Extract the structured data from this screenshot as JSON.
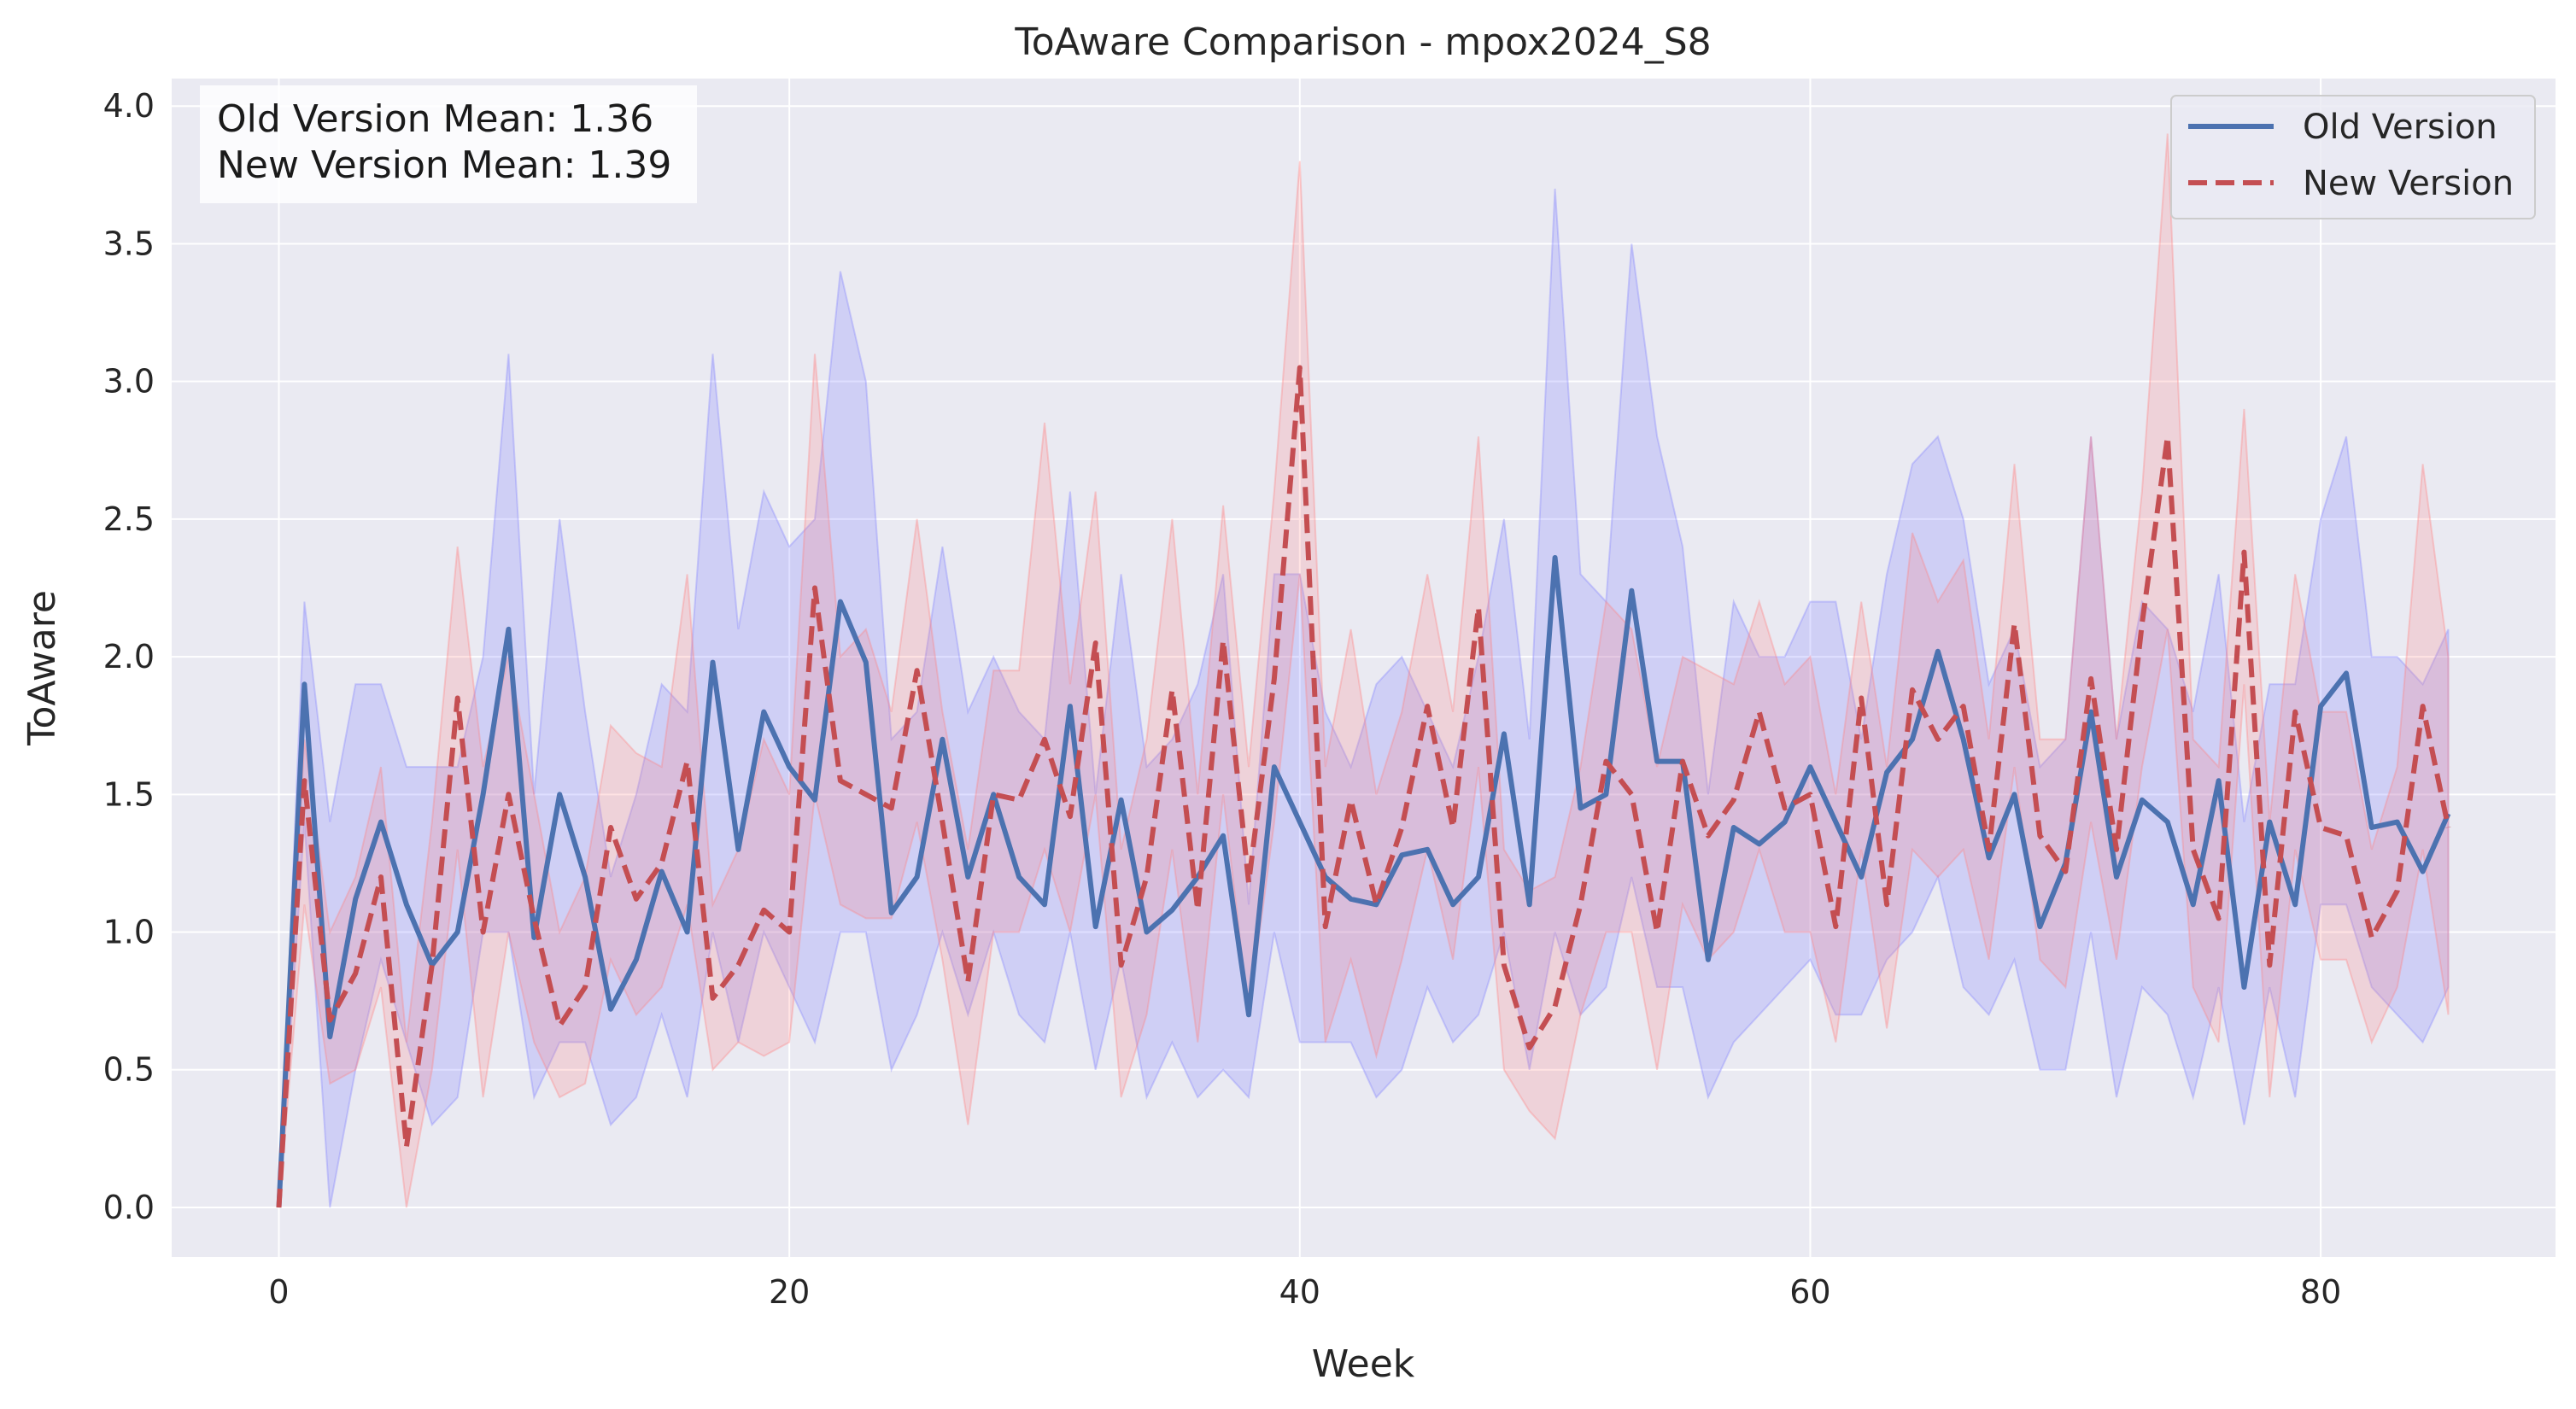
{
  "chart_data": {
    "type": "line",
    "title": "ToAware Comparison - mpox2024_S8",
    "xlabel": "Week",
    "ylabel": "ToAware",
    "xlim": [
      -4.2,
      89.2
    ],
    "ylim": [
      -0.18,
      4.1
    ],
    "x_ticks": [
      0,
      20,
      40,
      60,
      80
    ],
    "y_ticks": [
      0.0,
      0.5,
      1.0,
      1.5,
      2.0,
      2.5,
      3.0,
      3.5,
      4.0
    ],
    "x_tick_labels": [
      "0",
      "20",
      "40",
      "60",
      "80"
    ],
    "y_tick_labels": [
      "0.0",
      "0.5",
      "1.0",
      "1.5",
      "2.0",
      "2.5",
      "3.0",
      "3.5",
      "4.0"
    ],
    "grid": true,
    "legend_position": "top-right",
    "annotation_lines": [
      "Old Version Mean: 1.36",
      "New Version Mean: 1.39"
    ],
    "x": [
      0,
      1,
      2,
      3,
      4,
      5,
      6,
      7,
      8,
      9,
      10,
      11,
      12,
      13,
      14,
      15,
      16,
      17,
      18,
      19,
      20,
      21,
      22,
      23,
      24,
      25,
      26,
      27,
      28,
      29,
      30,
      31,
      32,
      33,
      34,
      35,
      36,
      37,
      38,
      39,
      40,
      41,
      42,
      43,
      44,
      45,
      46,
      47,
      48,
      49,
      50,
      51,
      52,
      53,
      54,
      55,
      56,
      57,
      58,
      59,
      60,
      61,
      62,
      63,
      64,
      65,
      66,
      67,
      68,
      69,
      70,
      71,
      72,
      73,
      74,
      75,
      76,
      77,
      78,
      79,
      80,
      81,
      82,
      83,
      84,
      85
    ],
    "series": [
      {
        "name": "Old Version",
        "color": "#4c72b0",
        "band_color": "#8080ff",
        "style": "solid",
        "values": [
          0.0,
          1.9,
          0.62,
          1.12,
          1.4,
          1.1,
          0.88,
          1.0,
          1.5,
          2.1,
          0.98,
          1.5,
          1.2,
          0.72,
          0.9,
          1.22,
          1.0,
          1.98,
          1.3,
          1.8,
          1.6,
          1.48,
          2.2,
          1.98,
          1.07,
          1.2,
          1.7,
          1.2,
          1.5,
          1.2,
          1.1,
          1.82,
          1.02,
          1.48,
          1.0,
          1.08,
          1.2,
          1.35,
          0.7,
          1.6,
          1.4,
          1.2,
          1.12,
          1.1,
          1.28,
          1.3,
          1.1,
          1.2,
          1.72,
          1.1,
          2.36,
          1.45,
          1.5,
          2.24,
          1.62,
          1.62,
          0.9,
          1.38,
          1.32,
          1.4,
          1.6,
          1.4,
          1.2,
          1.58,
          1.7,
          2.02,
          1.7,
          1.27,
          1.5,
          1.02,
          1.25,
          1.8,
          1.2,
          1.48,
          1.4,
          1.1,
          1.55,
          0.8,
          1.4,
          1.1,
          1.82,
          1.94,
          1.38,
          1.4,
          1.22,
          1.43
        ],
        "lower": [
          0.0,
          1.4,
          0.0,
          0.5,
          0.9,
          0.6,
          0.3,
          0.4,
          1.0,
          1.0,
          0.4,
          0.6,
          0.6,
          0.3,
          0.4,
          0.7,
          0.4,
          1.0,
          0.6,
          1.0,
          0.8,
          0.6,
          1.0,
          1.0,
          0.5,
          0.7,
          1.0,
          0.7,
          1.0,
          0.7,
          0.6,
          1.0,
          0.5,
          0.9,
          0.4,
          0.6,
          0.4,
          0.5,
          0.4,
          1.0,
          0.6,
          0.6,
          0.6,
          0.4,
          0.5,
          0.8,
          0.6,
          0.7,
          1.0,
          0.5,
          1.0,
          0.7,
          0.8,
          1.2,
          0.8,
          0.8,
          0.4,
          0.6,
          0.7,
          0.8,
          0.9,
          0.7,
          0.7,
          0.9,
          1.0,
          1.2,
          0.8,
          0.7,
          0.9,
          0.5,
          0.5,
          1.0,
          0.4,
          0.8,
          0.7,
          0.4,
          0.8,
          0.3,
          0.8,
          0.4,
          1.1,
          1.1,
          0.8,
          0.7,
          0.6,
          0.8
        ],
        "upper": [
          0.0,
          2.2,
          1.4,
          1.9,
          1.9,
          1.6,
          1.6,
          1.6,
          2.0,
          3.1,
          1.5,
          2.5,
          1.8,
          1.2,
          1.5,
          1.9,
          1.8,
          3.1,
          2.1,
          2.6,
          2.4,
          2.5,
          3.4,
          3.0,
          1.7,
          1.8,
          2.4,
          1.8,
          2.0,
          1.8,
          1.7,
          2.6,
          1.5,
          2.3,
          1.6,
          1.7,
          1.9,
          2.3,
          1.1,
          2.3,
          2.3,
          1.8,
          1.6,
          1.9,
          2.0,
          1.8,
          1.6,
          2.0,
          2.5,
          1.7,
          3.7,
          2.3,
          2.2,
          3.5,
          2.8,
          2.4,
          1.5,
          2.2,
          2.0,
          2.0,
          2.2,
          2.2,
          1.7,
          2.3,
          2.7,
          2.8,
          2.5,
          1.9,
          2.1,
          1.6,
          1.7,
          2.8,
          1.7,
          2.2,
          2.1,
          1.8,
          2.3,
          1.4,
          1.9,
          1.9,
          2.5,
          2.8,
          2.0,
          2.0,
          1.9,
          2.1
        ]
      },
      {
        "name": "New Version",
        "color": "#c44e52",
        "band_color": "#ff8080",
        "style": "dashed",
        "values": [
          0.0,
          1.55,
          0.68,
          0.85,
          1.2,
          0.22,
          0.88,
          1.85,
          1.0,
          1.5,
          1.05,
          0.66,
          0.8,
          1.38,
          1.12,
          1.25,
          1.62,
          0.76,
          0.88,
          1.08,
          1.0,
          2.25,
          1.55,
          1.5,
          1.45,
          1.95,
          1.4,
          0.82,
          1.5,
          1.48,
          1.7,
          1.42,
          2.05,
          0.88,
          1.2,
          1.88,
          1.08,
          2.06,
          1.18,
          1.92,
          3.05,
          1.02,
          1.48,
          1.1,
          1.38,
          1.82,
          1.38,
          2.18,
          0.88,
          0.58,
          0.73,
          1.1,
          1.62,
          1.5,
          1.0,
          1.62,
          1.35,
          1.48,
          1.8,
          1.45,
          1.5,
          1.02,
          1.85,
          1.1,
          1.88,
          1.7,
          1.82,
          1.3,
          2.12,
          1.35,
          1.22,
          1.92,
          1.3,
          2.12,
          2.8,
          1.3,
          1.05,
          2.38,
          0.88,
          1.8,
          1.38,
          1.35,
          0.98,
          1.15,
          1.82,
          1.38
        ],
        "lower": [
          0.0,
          1.1,
          0.45,
          0.5,
          0.8,
          0.0,
          0.5,
          1.3,
          0.4,
          1.0,
          0.6,
          0.4,
          0.45,
          0.9,
          0.7,
          0.8,
          1.1,
          0.5,
          0.6,
          0.55,
          0.6,
          1.5,
          1.1,
          1.05,
          1.05,
          1.4,
          0.9,
          0.3,
          1.0,
          1.0,
          1.3,
          1.0,
          1.5,
          0.4,
          0.7,
          1.3,
          0.6,
          1.5,
          0.7,
          1.4,
          2.3,
          0.6,
          0.9,
          0.55,
          0.9,
          1.3,
          0.9,
          1.6,
          0.5,
          0.35,
          0.25,
          0.7,
          1.0,
          1.0,
          0.5,
          1.1,
          0.9,
          1.0,
          1.3,
          1.0,
          1.0,
          0.6,
          1.3,
          0.65,
          1.3,
          1.2,
          1.3,
          0.9,
          1.6,
          0.9,
          0.8,
          1.4,
          0.9,
          1.6,
          2.1,
          0.8,
          0.6,
          1.9,
          0.4,
          1.3,
          0.9,
          0.9,
          0.6,
          0.8,
          1.3,
          0.7
        ],
        "upper": [
          0.0,
          1.7,
          1.0,
          1.2,
          1.6,
          0.6,
          1.4,
          2.4,
          1.6,
          2.0,
          1.5,
          1.0,
          1.2,
          1.75,
          1.65,
          1.6,
          2.3,
          1.1,
          1.3,
          1.7,
          1.5,
          3.1,
          2.0,
          2.1,
          1.8,
          2.5,
          1.8,
          1.3,
          1.95,
          1.95,
          2.85,
          1.9,
          2.6,
          1.3,
          1.7,
          2.5,
          1.5,
          2.55,
          1.6,
          2.6,
          3.8,
          1.6,
          2.1,
          1.5,
          1.8,
          2.3,
          1.8,
          2.8,
          1.3,
          1.15,
          1.2,
          1.6,
          2.2,
          2.1,
          1.6,
          2.0,
          1.95,
          1.9,
          2.2,
          1.9,
          2.0,
          1.5,
          2.2,
          1.6,
          2.45,
          2.2,
          2.35,
          1.7,
          2.7,
          1.7,
          1.7,
          2.8,
          1.7,
          2.6,
          3.9,
          1.7,
          1.6,
          2.9,
          1.4,
          2.3,
          1.8,
          1.8,
          1.3,
          1.6,
          2.7,
          2.0
        ]
      }
    ]
  }
}
